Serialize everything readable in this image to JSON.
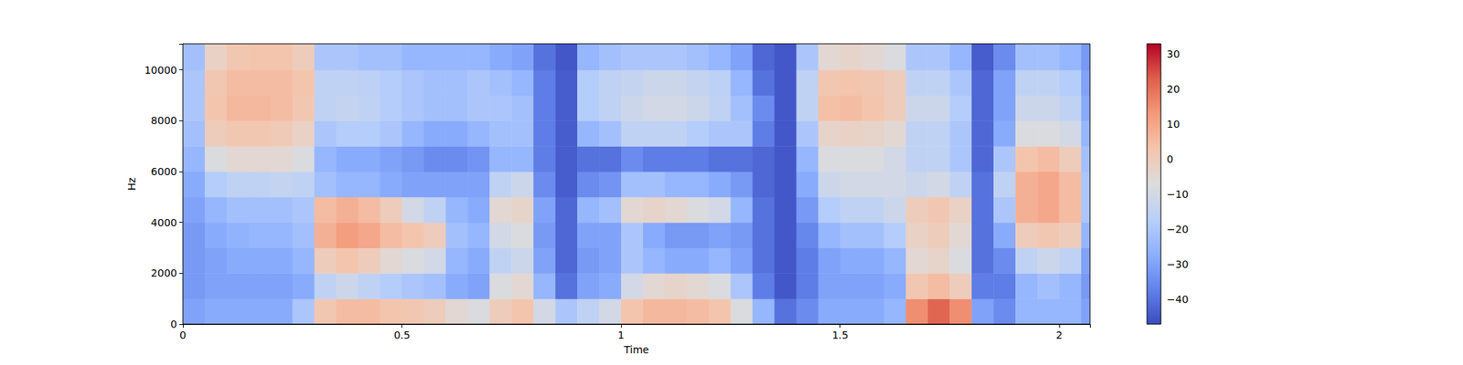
{
  "chart_data": {
    "type": "spectrogram",
    "x_label": "Time",
    "y_label": "Hz",
    "xlim": [
      0,
      2.07
    ],
    "xticks": [
      0,
      0.5,
      1,
      1.5,
      2
    ],
    "ylim": [
      0,
      11025
    ],
    "yticks": [
      0,
      2000,
      4000,
      6000,
      8000,
      10000
    ],
    "time_edges": [
      0,
      0.05,
      0.1,
      0.15,
      0.2,
      0.25,
      0.3,
      0.35,
      0.4,
      0.45,
      0.5,
      0.55,
      0.6,
      0.65,
      0.7,
      0.75,
      0.8,
      0.85,
      0.9,
      0.95,
      1,
      1.05,
      1.1,
      1.15,
      1.2,
      1.25,
      1.3,
      1.35,
      1.4,
      1.45,
      1.5,
      1.55,
      1.6,
      1.65,
      1.7,
      1.75,
      1.8,
      1.85,
      1.9,
      1.95,
      2,
      2.05,
      2.07
    ],
    "freq_edges": [
      0,
      1000,
      2000,
      3000,
      4000,
      5000,
      6000,
      7000,
      8000,
      9000,
      10000,
      11025
    ],
    "z": [
      [
        -30,
        -32,
        -32,
        -32,
        -30,
        -28,
        -25,
        -22,
        -20,
        -20,
        -22
      ],
      [
        -28,
        -30,
        -30,
        -28,
        -25,
        -18,
        -8,
        0,
        3,
        2,
        -2
      ],
      [
        -28,
        -30,
        -28,
        -26,
        -22,
        -15,
        -5,
        2,
        6,
        5,
        2
      ],
      [
        -28,
        -30,
        -28,
        -25,
        -22,
        -15,
        -5,
        2,
        6,
        5,
        3
      ],
      [
        -28,
        -30,
        -28,
        -25,
        -22,
        -14,
        -5,
        1,
        5,
        5,
        3
      ],
      [
        -20,
        -28,
        -25,
        -22,
        -20,
        -15,
        -8,
        -2,
        2,
        3,
        0
      ],
      [
        2,
        -15,
        0,
        8,
        5,
        -22,
        -25,
        -20,
        -15,
        -15,
        -20
      ],
      [
        5,
        -12,
        3,
        12,
        8,
        -25,
        -28,
        -18,
        -14,
        -15,
        -20
      ],
      [
        5,
        -15,
        0,
        10,
        5,
        -25,
        -28,
        -18,
        -15,
        -16,
        -22
      ],
      [
        3,
        -18,
        -5,
        5,
        0,
        -28,
        -30,
        -20,
        -18,
        -18,
        -22
      ],
      [
        2,
        -20,
        -8,
        3,
        -10,
        -30,
        -32,
        -25,
        -20,
        -20,
        -25
      ],
      [
        0,
        -22,
        -10,
        0,
        -15,
        -30,
        -35,
        -28,
        -22,
        -22,
        -25
      ],
      [
        -5,
        -28,
        -25,
        -22,
        -25,
        -30,
        -35,
        -28,
        -22,
        -22,
        -25
      ],
      [
        -8,
        -30,
        -28,
        -25,
        -28,
        -30,
        -33,
        -25,
        -20,
        -20,
        -25
      ],
      [
        0,
        -8,
        -15,
        -10,
        -5,
        -15,
        -25,
        -22,
        -20,
        -22,
        -28
      ],
      [
        3,
        -5,
        -12,
        -8,
        -3,
        -12,
        -25,
        -22,
        -22,
        -25,
        -30
      ],
      [
        -10,
        -25,
        -30,
        -32,
        -30,
        -35,
        -38,
        -38,
        -38,
        -38,
        -40
      ],
      [
        -20,
        -40,
        -42,
        -42,
        -42,
        -44,
        -44,
        -44,
        -44,
        -44,
        -45
      ],
      [
        -15,
        -30,
        -32,
        -30,
        -25,
        -35,
        -40,
        -25,
        -18,
        -18,
        -25
      ],
      [
        -10,
        -28,
        -30,
        -30,
        -22,
        -33,
        -40,
        -22,
        -15,
        -15,
        -22
      ],
      [
        3,
        -10,
        -20,
        -20,
        -5,
        -22,
        -35,
        -15,
        -12,
        -14,
        -20
      ],
      [
        6,
        -5,
        -25,
        -28,
        -3,
        -22,
        -38,
        -15,
        -10,
        -12,
        -20
      ],
      [
        6,
        -3,
        -28,
        -32,
        -5,
        -25,
        -38,
        -15,
        -10,
        -12,
        -20
      ],
      [
        5,
        -5,
        -28,
        -32,
        -8,
        -25,
        -38,
        -18,
        -12,
        -14,
        -22
      ],
      [
        3,
        -8,
        -25,
        -30,
        -10,
        -28,
        -40,
        -20,
        -15,
        -16,
        -25
      ],
      [
        -8,
        -20,
        -30,
        -32,
        -25,
        -32,
        -40,
        -20,
        -22,
        -25,
        -30
      ],
      [
        -25,
        -38,
        -40,
        -40,
        -40,
        -42,
        -42,
        -38,
        -35,
        -40,
        -42
      ],
      [
        -40,
        -45,
        -45,
        -45,
        -45,
        -45,
        -45,
        -45,
        -45,
        -45,
        -45
      ],
      [
        -35,
        -38,
        -38,
        -36,
        -32,
        -28,
        -25,
        -20,
        -15,
        -15,
        -20
      ],
      [
        -28,
        -30,
        -30,
        -25,
        -18,
        -12,
        -8,
        -3,
        4,
        2,
        -5
      ],
      [
        -28,
        -30,
        -28,
        -22,
        -15,
        -10,
        -8,
        -2,
        5,
        3,
        -3
      ],
      [
        -28,
        -30,
        -28,
        -22,
        -15,
        -10,
        -8,
        -3,
        3,
        2,
        -5
      ],
      [
        -25,
        -28,
        -25,
        -18,
        -12,
        -10,
        -10,
        -5,
        0,
        0,
        -8
      ],
      [
        15,
        2,
        -5,
        -2,
        0,
        -12,
        -15,
        -15,
        -12,
        -15,
        -20
      ],
      [
        22,
        5,
        -3,
        0,
        2,
        -10,
        -15,
        -15,
        -12,
        -15,
        -20
      ],
      [
        15,
        0,
        -8,
        -5,
        -2,
        -15,
        -20,
        -20,
        -18,
        -20,
        -25
      ],
      [
        -30,
        -38,
        -40,
        -40,
        -40,
        -40,
        -42,
        -42,
        -42,
        -42,
        -44
      ],
      [
        -35,
        -38,
        -35,
        -28,
        -20,
        -15,
        -20,
        -28,
        -30,
        -30,
        -35
      ],
      [
        -25,
        -25,
        -15,
        0,
        8,
        8,
        3,
        -8,
        -12,
        -15,
        -22
      ],
      [
        -25,
        -22,
        -12,
        2,
        10,
        10,
        5,
        -8,
        -12,
        -15,
        -22
      ],
      [
        -25,
        -25,
        -15,
        0,
        5,
        5,
        0,
        -10,
        -15,
        -18,
        -25
      ],
      [
        -30,
        -32,
        -30,
        -25,
        -20,
        -20,
        -22,
        -25,
        -28,
        -30,
        -32
      ]
    ],
    "colorbar": {
      "range": [
        -47,
        33
      ],
      "ticks": [
        {
          "value": -40,
          "label": "−40"
        },
        {
          "value": -30,
          "label": "−30"
        },
        {
          "value": -20,
          "label": "−20"
        },
        {
          "value": -10,
          "label": "−10"
        },
        0,
        10,
        20,
        30
      ]
    }
  }
}
